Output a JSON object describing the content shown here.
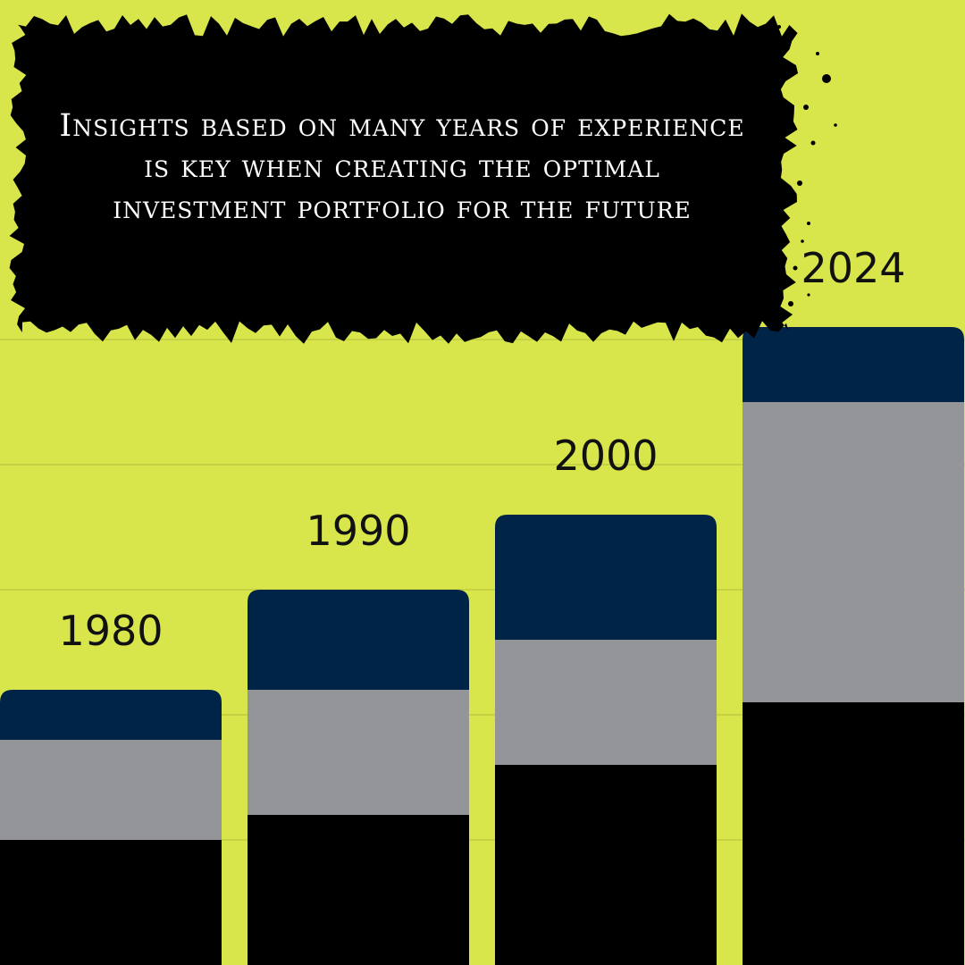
{
  "banner": {
    "text": "Insights based on many years of experience is key when creating the optimal investment portfolio for the future"
  },
  "colors": {
    "background": "#d8e64c",
    "banner": "#000000",
    "banner_text": "#ffffff",
    "gridline": "#b9c53e",
    "label_text": "#111111"
  },
  "chart_data": {
    "type": "bar",
    "stacked": true,
    "categories": [
      "1980",
      "1990",
      "2000",
      "2024"
    ],
    "series": [
      {
        "values": [
          1.0,
          1.2,
          1.6,
          2.1
        ],
        "color": "#000000"
      },
      {
        "values": [
          0.8,
          1.0,
          1.0,
          2.4
        ],
        "color": "#949599"
      },
      {
        "values": [
          0.4,
          0.8,
          1.0,
          0.6
        ],
        "color": "#002447"
      }
    ],
    "ylim": [
      0,
      5
    ],
    "grid": true,
    "legend": "none",
    "category_labels_above_bars": true,
    "axes_visible": false
  }
}
